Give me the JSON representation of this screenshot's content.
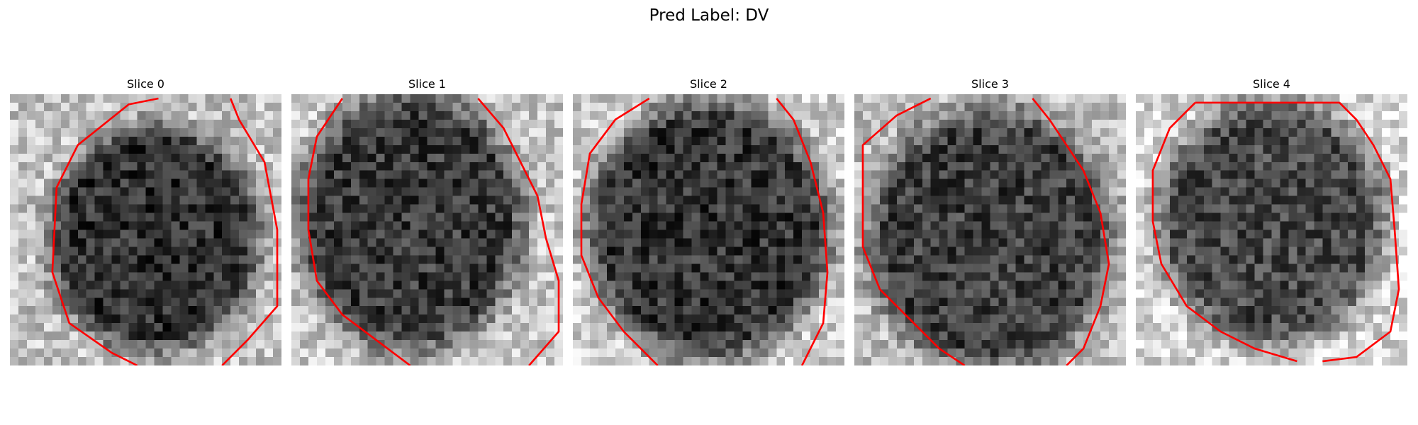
{
  "figure": {
    "suptitle": "Pred Label: DV"
  },
  "panels": [
    {
      "title": "Slice 0"
    },
    {
      "title": "Slice 1"
    },
    {
      "title": "Slice 2"
    },
    {
      "title": "Slice 3"
    },
    {
      "title": "Slice 4"
    }
  ],
  "colors": {
    "contour": "#ff0000",
    "colormap": "gray"
  }
}
